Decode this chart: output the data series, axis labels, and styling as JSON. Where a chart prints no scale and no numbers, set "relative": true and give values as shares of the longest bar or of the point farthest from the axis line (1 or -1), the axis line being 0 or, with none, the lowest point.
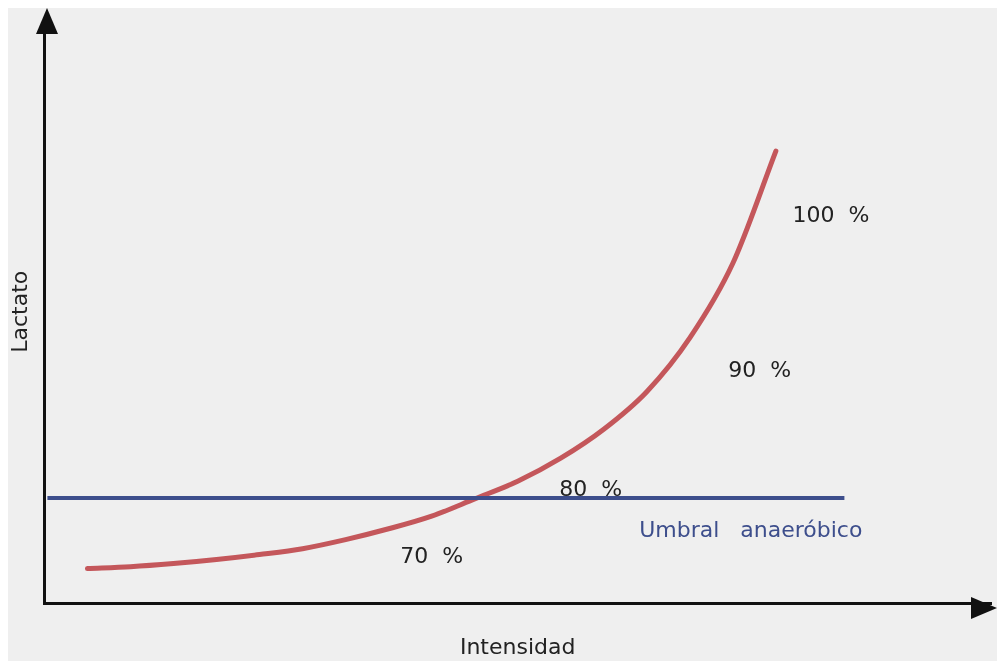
{
  "chart_data": {
    "type": "line",
    "relative": true,
    "xlabel": "Intensidad",
    "ylabel": "Lactato",
    "categories": [
      null,
      null,
      null,
      null,
      null,
      null,
      null,
      null,
      null,
      null,
      null,
      null,
      null,
      null,
      null,
      null,
      null,
      null,
      null,
      null,
      null,
      null,
      null
    ],
    "series": [
      {
        "color": "#c4575b",
        "values": [
          null,
          0.077,
          0.081,
          0.088,
          0.097,
          0.108,
          0.121,
          0.141,
          0.165,
          0.193,
          0.231,
          0.27,
          0.321,
          0.385,
          0.468,
          0.587,
          0.752,
          1,
          null,
          null,
          null,
          null,
          null
        ]
      }
    ],
    "ref_lines": [
      {
        "axis": "y",
        "value": 0.233,
        "label": "Umbral   anaeróbico",
        "color": "#3d4e8c"
      }
    ],
    "annotations": [
      "70  %",
      "80  %",
      "90  %",
      "100  %"
    ],
    "grid": false,
    "legend": false,
    "marker": "none",
    "line_style": "solid"
  }
}
